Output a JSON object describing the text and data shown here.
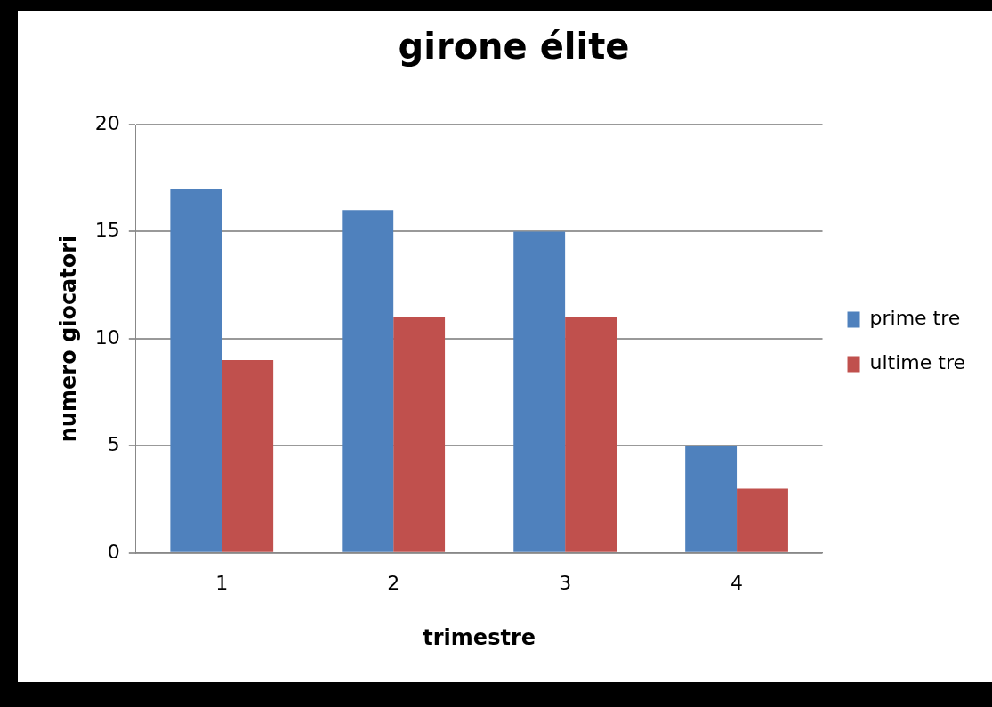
{
  "chart_data": {
    "type": "bar",
    "title": "girone élite",
    "xlabel": "trimestre",
    "ylabel": "numero giocatori",
    "categories": [
      "1",
      "2",
      "3",
      "4"
    ],
    "series": [
      {
        "name": "prime tre",
        "color": "#4f81bd",
        "values": [
          17,
          16,
          15,
          5
        ]
      },
      {
        "name": "ultime tre",
        "color": "#c0504d",
        "values": [
          9,
          11,
          11,
          3
        ]
      }
    ],
    "ylim": [
      0,
      20
    ],
    "yticks": [
      0,
      5,
      10,
      15,
      20
    ],
    "grid": "y",
    "legend": "right"
  }
}
